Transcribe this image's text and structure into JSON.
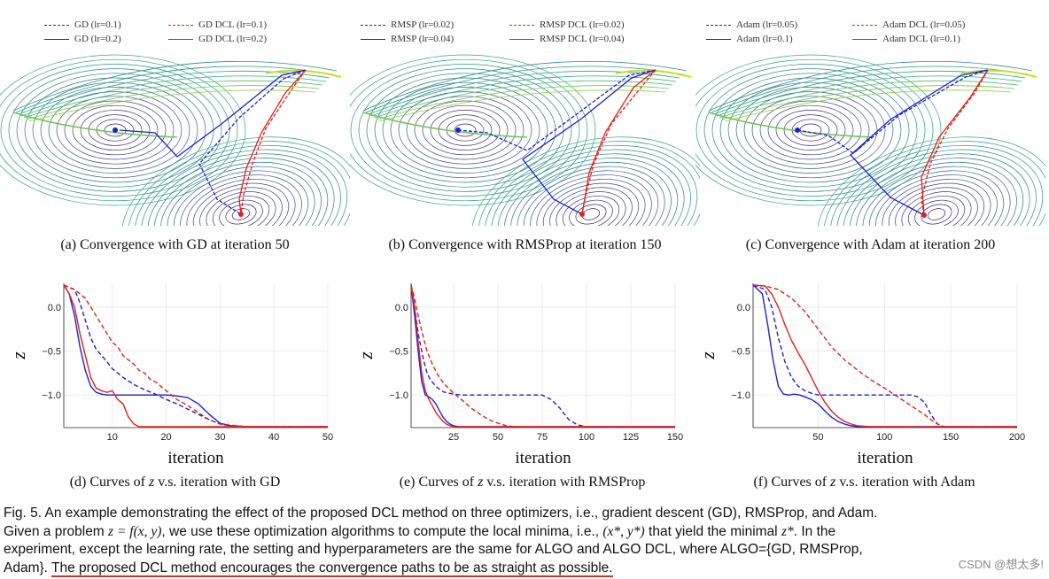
{
  "top_panels": [
    {
      "legend": [
        "GD (lr=0.1)",
        "GD DCL (lr=0.1)",
        "GD (lr=0.2)",
        "GD DCL (lr=0.2)"
      ],
      "caption": "(a) Convergence with GD at iteration 50"
    },
    {
      "legend": [
        "RMSP (lr=0.02)",
        "RMSP DCL (lr=0.02)",
        "RMSP (lr=0.04)",
        "RMSP DCL (lr=0.04)"
      ],
      "caption": "(b) Convergence with RMSProp at iteration 150"
    },
    {
      "legend": [
        "Adam (lr=0.05)",
        "Adam DCL (lr=0.05)",
        "Adam (lr=0.1)",
        "Adam DCL (lr=0.1)"
      ],
      "caption": "(c) Convergence with Adam at iteration 200"
    }
  ],
  "bottom_captions": [
    {
      "pre": "(d) Curves of ",
      "var": "z",
      "post": " v.s. iteration with GD"
    },
    {
      "pre": "(e) Curves of ",
      "var": "z",
      "post": " v.s. iteration with RMSProp"
    },
    {
      "pre": "(f) Curves of ",
      "var": "z",
      "post": " v.s. iteration with Adam"
    }
  ],
  "colors": {
    "blue": "#1f1fd6",
    "red": "#e3201b",
    "contour_dark": "#3b1f6e",
    "contour_light": "#c8e020"
  },
  "chart_data": [
    {
      "type": "line",
      "xlabel": "iteration",
      "ylabel": "z",
      "xlim": [
        1,
        50
      ],
      "ylim": [
        -1.37,
        0.27
      ],
      "xticks": [
        10,
        20,
        30,
        40,
        50
      ],
      "yticks": [
        0.0,
        -0.5,
        -1.0
      ],
      "ytick_labels": [
        "0.0",
        "−0.5",
        "−1.0"
      ],
      "series": [
        {
          "name": "GD (lr=0.1)",
          "color": "blue",
          "dash": true,
          "x": [
            1,
            3,
            4,
            5,
            6,
            7,
            8,
            9,
            10,
            12,
            14,
            16,
            18,
            20,
            22,
            24,
            26,
            28,
            30,
            32,
            35,
            40,
            50
          ],
          "y": [
            0.25,
            0.2,
            0.05,
            -0.15,
            -0.35,
            -0.48,
            -0.55,
            -0.62,
            -0.7,
            -0.8,
            -0.88,
            -0.94,
            -0.99,
            -1.05,
            -1.1,
            -1.16,
            -1.22,
            -1.28,
            -1.33,
            -1.35,
            -1.36,
            -1.36,
            -1.36
          ]
        },
        {
          "name": "GD (lr=0.2)",
          "color": "blue",
          "dash": false,
          "x": [
            1,
            2,
            3,
            4,
            5,
            6,
            7,
            8,
            9,
            10,
            12,
            15,
            18,
            20,
            22,
            24,
            26,
            28,
            30,
            32,
            35,
            40,
            50
          ],
          "y": [
            0.25,
            0.15,
            -0.1,
            -0.45,
            -0.72,
            -0.9,
            -0.97,
            -0.99,
            -1.0,
            -1.0,
            -1.0,
            -1.0,
            -1.0,
            -1.0,
            -1.01,
            -1.03,
            -1.1,
            -1.22,
            -1.32,
            -1.35,
            -1.36,
            -1.36,
            -1.36
          ]
        },
        {
          "name": "GD DCL (lr=0.1)",
          "color": "red",
          "dash": true,
          "x": [
            1,
            2,
            3,
            4,
            5,
            6,
            7,
            8,
            9,
            10,
            11,
            12,
            13,
            14,
            15,
            16,
            17,
            18,
            19,
            20,
            22,
            24,
            26,
            28,
            30,
            35,
            50
          ],
          "y": [
            0.25,
            0.22,
            0.2,
            0.15,
            0.1,
            0.0,
            -0.1,
            -0.2,
            -0.3,
            -0.4,
            -0.45,
            -0.55,
            -0.6,
            -0.65,
            -0.72,
            -0.75,
            -0.82,
            -0.85,
            -0.9,
            -0.95,
            -1.05,
            -1.12,
            -1.2,
            -1.28,
            -1.33,
            -1.36,
            -1.36
          ]
        },
        {
          "name": "GD DCL (lr=0.2)",
          "color": "red",
          "dash": false,
          "x": [
            1,
            2,
            3,
            4,
            5,
            6,
            7,
            8,
            9,
            10,
            11,
            12,
            13,
            14,
            15,
            20,
            30,
            50
          ],
          "y": [
            0.25,
            0.15,
            0.0,
            -0.3,
            -0.55,
            -0.8,
            -0.92,
            -0.95,
            -0.97,
            -0.95,
            -1.05,
            -1.1,
            -1.25,
            -1.33,
            -1.36,
            -1.36,
            -1.36,
            -1.36
          ]
        }
      ]
    },
    {
      "type": "line",
      "xlabel": "iteration",
      "ylabel": "z",
      "xlim": [
        1,
        150
      ],
      "ylim": [
        -1.37,
        0.27
      ],
      "xticks": [
        25,
        50,
        75,
        100,
        125,
        150
      ],
      "yticks": [
        0.0,
        -0.5,
        -1.0
      ],
      "ytick_labels": [
        "0.0",
        "−0.5",
        "−1.0"
      ],
      "series": [
        {
          "name": "RMSP (lr=0.02)",
          "color": "blue",
          "dash": true,
          "x": [
            1,
            3,
            5,
            8,
            10,
            12,
            15,
            18,
            20,
            25,
            30,
            40,
            60,
            75,
            80,
            85,
            90,
            95,
            100,
            110,
            150
          ],
          "y": [
            0.25,
            0.0,
            -0.3,
            -0.6,
            -0.75,
            -0.83,
            -0.9,
            -0.95,
            -0.97,
            -0.99,
            -1.0,
            -1.0,
            -1.0,
            -1.0,
            -1.05,
            -1.15,
            -1.28,
            -1.34,
            -1.36,
            -1.36,
            -1.36
          ]
        },
        {
          "name": "RMSP (lr=0.04)",
          "color": "blue",
          "dash": false,
          "x": [
            1,
            3,
            5,
            7,
            9,
            11,
            13,
            15,
            17,
            19,
            21,
            23,
            25,
            28,
            32,
            40,
            150
          ],
          "y": [
            0.25,
            -0.1,
            -0.5,
            -0.85,
            -1.0,
            -1.02,
            -1.05,
            -1.1,
            -1.18,
            -1.25,
            -1.3,
            -1.33,
            -1.35,
            -1.36,
            -1.36,
            -1.36,
            -1.36
          ]
        },
        {
          "name": "RMSP DCL (lr=0.02)",
          "color": "red",
          "dash": true,
          "x": [
            1,
            3,
            5,
            8,
            10,
            13,
            16,
            20,
            25,
            30,
            35,
            40,
            45,
            50,
            55,
            60,
            150
          ],
          "y": [
            0.25,
            0.1,
            -0.1,
            -0.35,
            -0.5,
            -0.65,
            -0.77,
            -0.88,
            -0.98,
            -1.06,
            -1.15,
            -1.22,
            -1.28,
            -1.32,
            -1.35,
            -1.36,
            -1.36
          ]
        },
        {
          "name": "RMSP DCL (lr=0.04)",
          "color": "red",
          "dash": false,
          "x": [
            1,
            3,
            5,
            7,
            9,
            11,
            13,
            15,
            17,
            19,
            21,
            23,
            26,
            30,
            150
          ],
          "y": [
            0.25,
            0.0,
            -0.4,
            -0.75,
            -0.95,
            -1.05,
            -1.12,
            -1.2,
            -1.25,
            -1.3,
            -1.33,
            -1.35,
            -1.36,
            -1.36,
            -1.36
          ]
        }
      ]
    },
    {
      "type": "line",
      "xlabel": "iteration",
      "ylabel": "z",
      "xlim": [
        1,
        200
      ],
      "ylim": [
        -1.37,
        0.27
      ],
      "xticks": [
        50,
        100,
        150,
        200
      ],
      "yticks": [
        0.0,
        -0.5,
        -1.0
      ],
      "ytick_labels": [
        "0.0",
        "−0.5",
        "−1.0"
      ],
      "series": [
        {
          "name": "Adam (lr=0.05)",
          "color": "blue",
          "dash": true,
          "x": [
            1,
            10,
            15,
            20,
            25,
            30,
            35,
            40,
            45,
            50,
            60,
            80,
            100,
            120,
            125,
            130,
            135,
            140,
            145,
            200
          ],
          "y": [
            0.25,
            0.2,
            0.0,
            -0.35,
            -0.62,
            -0.8,
            -0.9,
            -0.95,
            -0.98,
            -1.0,
            -1.0,
            -1.0,
            -1.0,
            -1.0,
            -1.02,
            -1.08,
            -1.22,
            -1.33,
            -1.36,
            -1.36
          ]
        },
        {
          "name": "Adam (lr=0.1)",
          "color": "blue",
          "dash": false,
          "x": [
            1,
            8,
            12,
            16,
            20,
            24,
            28,
            32,
            36,
            40,
            45,
            50,
            55,
            60,
            65,
            70,
            75,
            80,
            90,
            200
          ],
          "y": [
            0.25,
            0.15,
            -0.2,
            -0.6,
            -0.9,
            -0.99,
            -1.0,
            -0.99,
            -1.0,
            -1.02,
            -1.05,
            -1.1,
            -1.18,
            -1.25,
            -1.3,
            -1.33,
            -1.35,
            -1.36,
            -1.36,
            -1.36
          ]
        },
        {
          "name": "Adam DCL (lr=0.05)",
          "color": "red",
          "dash": true,
          "x": [
            1,
            10,
            20,
            30,
            40,
            50,
            60,
            70,
            80,
            90,
            100,
            110,
            120,
            130,
            135,
            140,
            145,
            200
          ],
          "y": [
            0.25,
            0.24,
            0.2,
            0.1,
            -0.05,
            -0.25,
            -0.45,
            -0.6,
            -0.72,
            -0.83,
            -0.92,
            -1.02,
            -1.12,
            -1.22,
            -1.28,
            -1.33,
            -1.36,
            -1.36
          ]
        },
        {
          "name": "Adam DCL (lr=0.1)",
          "color": "red",
          "dash": false,
          "x": [
            1,
            10,
            15,
            20,
            25,
            30,
            35,
            40,
            45,
            50,
            55,
            60,
            65,
            70,
            75,
            80,
            90,
            200
          ],
          "y": [
            0.25,
            0.24,
            0.15,
            0.0,
            -0.2,
            -0.38,
            -0.52,
            -0.65,
            -0.8,
            -0.95,
            -1.08,
            -1.18,
            -1.25,
            -1.3,
            -1.33,
            -1.35,
            -1.36,
            -1.36
          ]
        }
      ]
    }
  ],
  "figure_caption": {
    "line1": "Fig. 5. An example demonstrating the effect of the proposed DCL method on three optimizers, i.e.,  gradient descent (GD), RMSProp, and Adam.",
    "line2_a": "Given a problem ",
    "line2_eq": "z = f(x, y)",
    "line2_b": ", we use these optimization algorithms to compute the local minima, i.e., ",
    "line2_eq2": "(x*, y*)",
    "line2_c": " that yield the minimal ",
    "line2_eq3": "z*",
    "line2_d": ". In the",
    "line3": "experiment, except the learning rate, the setting and hyperparameters are the same for ALGO and ALGO DCL, where ALGO={GD, RMSProp,",
    "line4_a": "Adam}. ",
    "line4_under": "The proposed DCL method encourages the convergence paths to be as straight as possible."
  },
  "watermark": "CSDN @想太多!"
}
